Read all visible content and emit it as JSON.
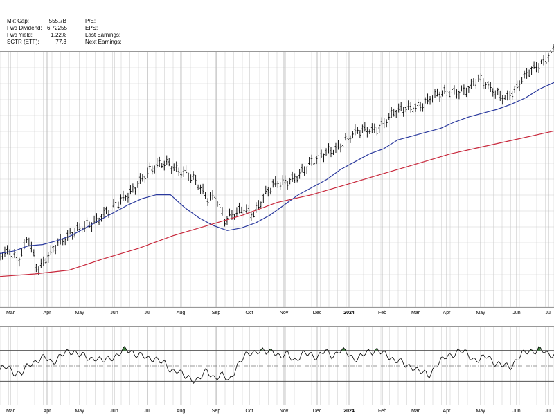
{
  "header": {
    "stats_left": [
      {
        "label": "Mkt Cap:",
        "value": "555.7B"
      },
      {
        "label": "Fwd Dividend:",
        "value": "6.72255"
      },
      {
        "label": "Fwd Yield:",
        "value": "1.22%"
      },
      {
        "label": "SCTR (ETF):",
        "value": "77.3"
      }
    ],
    "stats_right": [
      {
        "label": "P/E:",
        "value": ""
      },
      {
        "label": "EPS:",
        "value": ""
      },
      {
        "label": "Last Earnings:",
        "value": ""
      },
      {
        "label": "Next Earnings:",
        "value": ""
      }
    ]
  },
  "colors": {
    "price": "#000000",
    "ma_short": "#2b3a9e",
    "ma_long": "#c8283c",
    "grid": "#d0d0d0",
    "oscillator": "#000000",
    "overbought_fill": "#3f7f3f"
  },
  "chart_data": [
    {
      "type": "line",
      "x_tick_labels": [
        "Mar",
        "Apr",
        "May",
        "Jun",
        "Jul",
        "Aug",
        "Sep",
        "Oct",
        "Nov",
        "Dec",
        "2024",
        "Feb",
        "Mar",
        "Apr",
        "May",
        "Jun",
        "Jul"
      ],
      "series_shapes": [
        "ohlc-bars"
      ],
      "series": [
        {
          "role": "price",
          "values": [
            0.795,
            0.77,
            0.815,
            0.73,
            0.86,
            0.8,
            0.75,
            0.735,
            0.71,
            0.68,
            0.66,
            0.64,
            0.62,
            0.58,
            0.54,
            0.5,
            0.47,
            0.445,
            0.43,
            0.46,
            0.48,
            0.52,
            0.57,
            0.56,
            0.66,
            0.64,
            0.62,
            0.63,
            0.57,
            0.53,
            0.52,
            0.5,
            0.47,
            0.44,
            0.42,
            0.39,
            0.37,
            0.34,
            0.32,
            0.31,
            0.3,
            0.27,
            0.24,
            0.23,
            0.215,
            0.2,
            0.18,
            0.17,
            0.16,
            0.15,
            0.14,
            0.11,
            0.14,
            0.16,
            0.175,
            0.15,
            0.1,
            0.06,
            0.03,
            -0.01
          ]
        },
        {
          "role": "moving-average-short",
          "values": [
            0.79,
            0.78,
            0.76,
            0.755,
            0.74,
            0.72,
            0.69,
            0.66,
            0.63,
            0.6,
            0.575,
            0.56,
            0.56,
            0.61,
            0.65,
            0.68,
            0.7,
            0.69,
            0.67,
            0.64,
            0.6,
            0.56,
            0.53,
            0.5,
            0.46,
            0.43,
            0.4,
            0.38,
            0.345,
            0.33,
            0.315,
            0.3,
            0.275,
            0.255,
            0.24,
            0.225,
            0.205,
            0.18,
            0.145,
            0.12
          ]
        },
        {
          "role": "moving-average-long",
          "values": [
            0.88,
            0.87,
            0.855,
            0.81,
            0.77,
            0.72,
            0.68,
            0.64,
            0.59,
            0.56,
            0.52,
            0.48,
            0.44,
            0.4,
            0.37,
            0.34,
            0.31
          ]
        }
      ]
    },
    {
      "type": "line",
      "x_tick_labels": [
        "Mar",
        "Apr",
        "May",
        "Jun",
        "Jul",
        "Aug",
        "Sep",
        "Oct",
        "Nov",
        "Dec",
        "2024",
        "Feb",
        "Mar",
        "Apr",
        "May",
        "Jun",
        "Jul"
      ],
      "ylim": [
        0,
        100
      ],
      "reference_lines": [
        70,
        50,
        30
      ],
      "series": [
        {
          "role": "oscillator",
          "values": [
            45,
            48,
            42,
            40,
            52,
            58,
            60,
            55,
            62,
            66,
            70,
            64,
            58,
            62,
            55,
            60,
            66,
            70,
            68,
            64,
            58,
            62,
            54,
            44,
            46,
            35,
            33,
            34,
            42,
            36,
            38,
            30,
            50,
            60,
            68,
            70,
            66,
            72,
            60,
            65,
            58,
            64,
            66,
            62,
            68,
            64,
            70,
            66,
            60,
            62,
            68,
            72,
            64,
            60,
            58,
            48,
            50,
            42,
            36,
            52,
            58,
            64,
            70,
            66,
            60,
            58,
            62,
            55,
            50,
            48,
            60,
            66,
            70,
            72,
            64,
            66
          ]
        }
      ]
    }
  ]
}
